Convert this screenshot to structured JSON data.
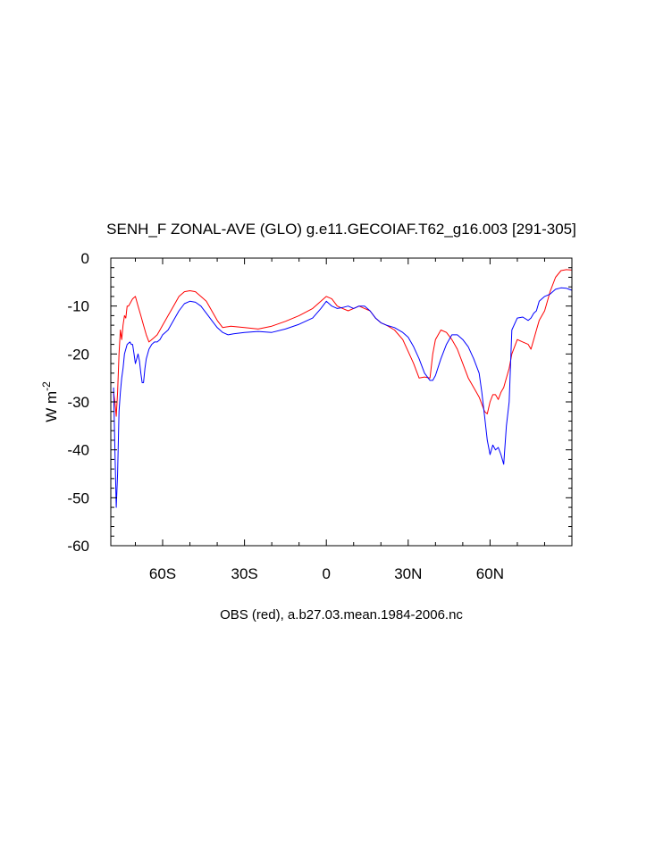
{
  "chart_data": {
    "type": "line",
    "title": "SENH_F ZONAL-AVE (GLO) g.e11.GECOIAF.T62_g16.003 [291-305]",
    "caption": "OBS (red), a.b27.03.mean.1984-2006.nc",
    "ylabel_main": "W m",
    "ylabel_exp": "-2",
    "xlim": [
      -79,
      90
    ],
    "ylim": [
      -60,
      0
    ],
    "xticks": [
      {
        "value": -60,
        "label": "60S"
      },
      {
        "value": -30,
        "label": "30S"
      },
      {
        "value": 0,
        "label": "0"
      },
      {
        "value": 30,
        "label": "30N"
      },
      {
        "value": 60,
        "label": "60N"
      }
    ],
    "yticks": [
      {
        "value": 0,
        "label": "0"
      },
      {
        "value": -10,
        "label": "-10"
      },
      {
        "value": -20,
        "label": "-20"
      },
      {
        "value": -30,
        "label": "-30"
      },
      {
        "value": -40,
        "label": "-40"
      },
      {
        "value": -50,
        "label": "-50"
      },
      {
        "value": -60,
        "label": "-60"
      }
    ],
    "series": [
      {
        "color": "#ff0000",
        "x": [
          -78,
          -77.5,
          -77,
          -76.5,
          -76,
          -75.5,
          -75,
          -74.5,
          -74,
          -73.5,
          -73,
          -72.5,
          -72,
          -71.5,
          -71,
          -70,
          -69,
          -68,
          -67,
          -66,
          -65,
          -64,
          -63,
          -62,
          -61,
          -60,
          -58,
          -56,
          -54,
          -52,
          -50,
          -48,
          -46,
          -44,
          -42,
          -40,
          -38,
          -35,
          -30,
          -25,
          -20,
          -15,
          -10,
          -5,
          -2,
          0,
          2,
          4,
          6,
          8,
          10,
          12,
          14,
          16,
          18,
          20,
          22,
          25,
          28,
          30,
          32,
          34,
          36,
          38,
          39,
          40,
          42,
          44,
          46,
          48,
          50,
          52,
          54,
          56,
          58,
          59,
          60,
          61,
          62,
          63,
          64,
          65,
          66,
          67,
          68,
          70,
          72,
          74,
          75,
          76,
          77,
          78,
          80,
          82,
          84,
          86,
          88,
          90
        ],
        "y": [
          -28,
          -30,
          -33,
          -28,
          -20,
          -15,
          -17,
          -14,
          -12,
          -12.5,
          -10,
          -10,
          -9.5,
          -9,
          -8.5,
          -8,
          -10,
          -12,
          -14,
          -16,
          -17.5,
          -17,
          -16.5,
          -16,
          -15,
          -14,
          -12,
          -10,
          -8,
          -7,
          -6.8,
          -7,
          -8,
          -9,
          -11,
          -13,
          -14.5,
          -14.2,
          -14.5,
          -14.8,
          -14.2,
          -13.2,
          -12,
          -10.5,
          -9,
          -8,
          -8.5,
          -10,
          -10.5,
          -11,
          -10.5,
          -10,
          -10.5,
          -11,
          -12.5,
          -13.5,
          -14,
          -15,
          -17,
          -19.5,
          -22,
          -25,
          -24.8,
          -25,
          -20,
          -17,
          -15,
          -15.5,
          -17,
          -19,
          -22,
          -25,
          -27,
          -29,
          -32,
          -32.5,
          -30,
          -28.5,
          -28.5,
          -29.5,
          -28,
          -27,
          -25,
          -23,
          -20,
          -17,
          -17.5,
          -18,
          -19,
          -17,
          -15,
          -13,
          -11,
          -7,
          -4,
          -2.6,
          -2.4,
          -2.5
        ]
      },
      {
        "color": "#0000ff",
        "x": [
          -78,
          -77.5,
          -77,
          -76.5,
          -76,
          -75.5,
          -75,
          -74.5,
          -74,
          -73,
          -72,
          -71.5,
          -71,
          -70.5,
          -70,
          -69.5,
          -69,
          -68.5,
          -68,
          -67.5,
          -67,
          -66.5,
          -66,
          -65,
          -64,
          -63,
          -62,
          -61,
          -60,
          -58,
          -56,
          -54,
          -52,
          -50,
          -48,
          -46,
          -44,
          -42,
          -40,
          -38,
          -36,
          -34,
          -30,
          -25,
          -20,
          -15,
          -10,
          -5,
          -2,
          0,
          2,
          4,
          6,
          8,
          10,
          12,
          14,
          16,
          18,
          20,
          22,
          25,
          28,
          30,
          32,
          34,
          36,
          38,
          39,
          40,
          42,
          44,
          46,
          48,
          50,
          52,
          54,
          56,
          57,
          58,
          59,
          60,
          61,
          62,
          63,
          64,
          65,
          66,
          67,
          68,
          70,
          72,
          74,
          75,
          76,
          77,
          78,
          80,
          82,
          84,
          86,
          88,
          90
        ],
        "y": [
          -27,
          -40,
          -52,
          -45,
          -32,
          -28,
          -25,
          -23,
          -20,
          -18,
          -17.5,
          -18,
          -18,
          -20,
          -22,
          -21,
          -20,
          -21.5,
          -24,
          -26,
          -26,
          -23,
          -21,
          -19,
          -18,
          -17.5,
          -17.5,
          -17,
          -16,
          -15,
          -13,
          -11,
          -9.5,
          -9,
          -9.2,
          -10,
          -11.5,
          -13,
          -14.5,
          -15.5,
          -16,
          -15.8,
          -15.5,
          -15.3,
          -15.5,
          -14.8,
          -13.8,
          -12.5,
          -10.5,
          -9,
          -10,
          -10.5,
          -10.3,
          -10,
          -10.5,
          -10,
          -10,
          -11,
          -12.5,
          -13.5,
          -14,
          -14.5,
          -15.5,
          -16.5,
          -18.5,
          -21,
          -24,
          -25.5,
          -25.5,
          -24.5,
          -21,
          -18,
          -16,
          -16,
          -17,
          -18.5,
          -21,
          -24,
          -28,
          -33,
          -38,
          -41,
          -39,
          -40,
          -39.5,
          -41,
          -43,
          -35,
          -30,
          -15,
          -12.5,
          -12.3,
          -13,
          -12.5,
          -11.5,
          -11,
          -9,
          -8,
          -7.5,
          -6.5,
          -6.2,
          -6.3,
          -6.7
        ]
      }
    ]
  }
}
